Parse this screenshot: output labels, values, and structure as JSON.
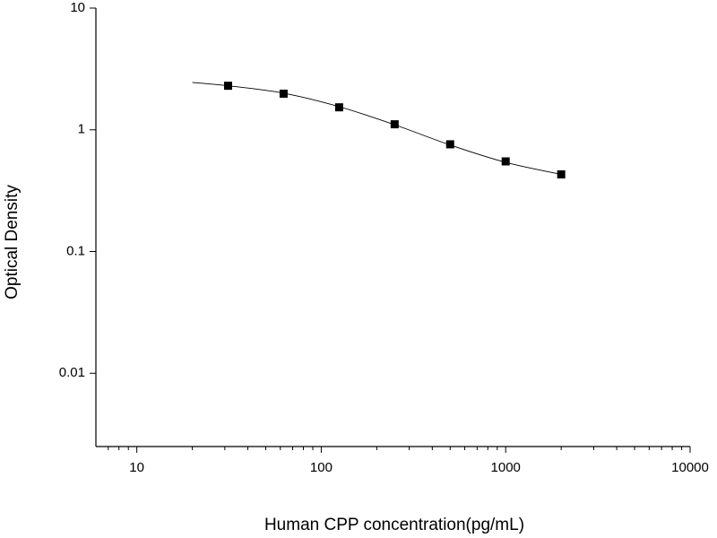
{
  "chart_data": {
    "type": "scatter",
    "x_label": "Human CPP concentration(pg/mL)",
    "y_label": "Optical Density",
    "xlog": true,
    "ylog": true,
    "xlim": [
      6,
      10000
    ],
    "ylim": [
      0.0025,
      10
    ],
    "xticks": [
      10,
      100,
      1000,
      10000
    ],
    "xminorticks": [
      7,
      8,
      9,
      20,
      30,
      40,
      50,
      60,
      70,
      80,
      90,
      200,
      300,
      400,
      500,
      600,
      700,
      800,
      900,
      2000,
      3000,
      4000,
      5000,
      6000,
      7000,
      8000,
      9000
    ],
    "yticks": [
      10,
      1,
      0.1,
      0.01
    ],
    "series": [
      {
        "marker": "square",
        "color": "#000000",
        "x": [
          31.25,
          62.5,
          125,
          250,
          500,
          1000,
          2000
        ],
        "values": [
          2.3,
          1.98,
          1.53,
          1.11,
          0.76,
          0.55,
          0.43
        ]
      },
      {
        "marker": "line",
        "color": "#000000",
        "x": [
          20,
          31.25,
          62.5,
          125,
          250,
          500,
          1000,
          2000
        ],
        "values": [
          2.45,
          2.3,
          2.0,
          1.55,
          1.1,
          0.75,
          0.54,
          0.43
        ]
      }
    ]
  }
}
